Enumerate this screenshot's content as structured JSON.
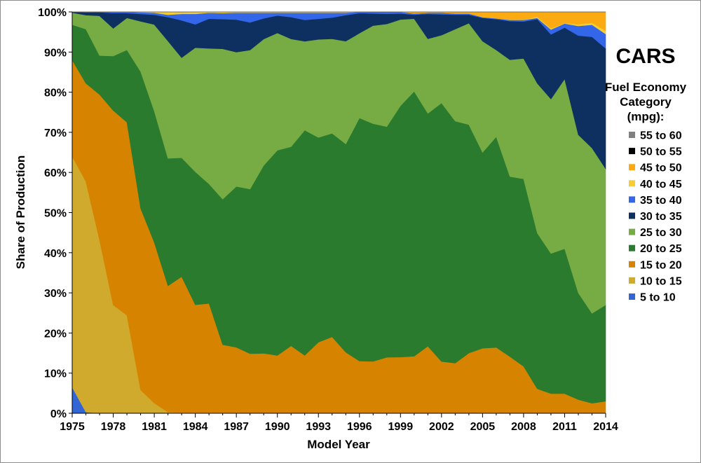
{
  "chart_data": {
    "type": "area",
    "stacked": true,
    "normalized_percent": true,
    "title": "CARS",
    "xlabel": "Model Year",
    "ylabel": "Share of Production",
    "x": [
      1975,
      1976,
      1977,
      1978,
      1979,
      1980,
      1981,
      1982,
      1983,
      1984,
      1985,
      1986,
      1987,
      1988,
      1989,
      1990,
      1991,
      1992,
      1993,
      1994,
      1995,
      1996,
      1997,
      1998,
      1999,
      2000,
      2001,
      2002,
      2003,
      2004,
      2005,
      2006,
      2007,
      2008,
      2009,
      2010,
      2011,
      2012,
      2013,
      2014
    ],
    "x_tick_labels": [
      "1975",
      "1978",
      "1981",
      "1984",
      "1987",
      "1990",
      "1993",
      "1996",
      "1999",
      "2002",
      "2005",
      "2008",
      "2011",
      "2014"
    ],
    "y_tick_labels": [
      "0%",
      "10%",
      "20%",
      "30%",
      "40%",
      "50%",
      "60%",
      "70%",
      "80%",
      "90%",
      "100%"
    ],
    "ylim": [
      0,
      100
    ],
    "xlim": [
      1975,
      2014
    ],
    "grid": false,
    "legend": {
      "title_lines": [
        "Fuel Economy",
        "Category",
        "(mpg):"
      ],
      "placement": "right",
      "order": [
        "55 to 60",
        "50 to 55",
        "45 to 50",
        "40 to 45",
        "35 to 40",
        "30 to 35",
        "25 to 30",
        "20 to 25",
        "15 to 20",
        "10 to 15",
        "5 to 10"
      ]
    },
    "series": [
      {
        "name": "5 to 10",
        "color": "#3465d4",
        "values": [
          6.5,
          0.3,
          0,
          0,
          0,
          0,
          0,
          0,
          0,
          0,
          0,
          0,
          0,
          0,
          0,
          0,
          0,
          0,
          0,
          0,
          0,
          0,
          0,
          0,
          0,
          0,
          0,
          0,
          0,
          0,
          0,
          0,
          0,
          0,
          0,
          0,
          0,
          0,
          0,
          0
        ]
      },
      {
        "name": "10 to 15",
        "color": "#cfaa2d",
        "values": [
          57.5,
          57.5,
          44,
          27,
          24.5,
          5.7,
          2.5,
          0.3,
          0.2,
          0.2,
          0.2,
          0.2,
          0.2,
          0.1,
          0.1,
          0.1,
          0.1,
          0.1,
          0.1,
          0.1,
          0.1,
          0.1,
          0.1,
          0.1,
          0.1,
          0.1,
          0.1,
          0.1,
          0.1,
          0.1,
          0.2,
          0.2,
          0.1,
          0.1,
          0.1,
          0.1,
          0.1,
          0.1,
          0.1,
          0.1
        ]
      },
      {
        "name": "15 to 20",
        "color": "#d68400",
        "values": [
          24,
          24.5,
          37,
          48.5,
          48.3,
          44.5,
          39.5,
          31.2,
          33.8,
          26.8,
          27.2,
          16.9,
          16.2,
          14.6,
          14.7,
          14.2,
          16.6,
          14.3,
          17.5,
          18.9,
          15.1,
          12.9,
          12.8,
          13.8,
          13.9,
          14.1,
          16.6,
          12.8,
          12.4,
          14.9,
          16,
          16.2,
          14,
          11.6,
          6,
          4.8,
          4.8,
          3.3,
          2.4,
          2.9
        ]
      },
      {
        "name": "20 to 25",
        "color": "#2b7b2e",
        "values": [
          8.8,
          13.5,
          9.9,
          13.6,
          18.1,
          33.5,
          32.3,
          31.5,
          29.6,
          33.1,
          29.8,
          36.3,
          40,
          40.6,
          46.4,
          50.7,
          49.3,
          56,
          50.7,
          50.6,
          51.9,
          60.5,
          59.1,
          57.3,
          62.7,
          66,
          58,
          64.4,
          60.3,
          56.9,
          48.8,
          52.5,
          44.8,
          46.7,
          38.8,
          34.9,
          36.1,
          26.6,
          22.4,
          24
        ]
      },
      {
        "name": "25 to 30",
        "color": "#77ab44",
        "values": [
          3,
          3.5,
          10.1,
          6.9,
          8,
          12.3,
          21.3,
          29,
          24.9,
          30.9,
          33.8,
          37.5,
          33.4,
          34.3,
          31.2,
          29,
          26.7,
          22.1,
          24.3,
          23.5,
          25.6,
          21.1,
          24.4,
          25.5,
          21.5,
          18.1,
          18.6,
          16.9,
          22.9,
          25.3,
          27.7,
          21.6,
          29.1,
          30,
          37.3,
          38.5,
          42.3,
          39.4,
          41.2,
          33.9
        ]
      },
      {
        "name": "30 to 35",
        "color": "#0e3060",
        "values": [
          0.2,
          0.7,
          0.9,
          3.8,
          1.2,
          1.8,
          2.4,
          5.9,
          9.3,
          5.8,
          7.4,
          7.4,
          8.1,
          6.8,
          5.1,
          4.3,
          5.4,
          5.3,
          5.1,
          5.3,
          6.5,
          5,
          3,
          2.5,
          1.5,
          1,
          6.2,
          5.2,
          3.6,
          2.1,
          5.8,
          7.7,
          9.6,
          9.2,
          16,
          16.1,
          12.8,
          24.7,
          27.7,
          30
        ]
      },
      {
        "name": "35 to 40",
        "color": "#3366e8",
        "values": [
          0,
          0.1,
          0.1,
          0.3,
          0.3,
          0.4,
          0.5,
          0.6,
          1.6,
          2.6,
          1.5,
          1.5,
          1.7,
          2.4,
          1.4,
          0.7,
          1.1,
          1.8,
          1.5,
          1.2,
          0.6,
          0.3,
          0.4,
          0.5,
          0.4,
          0.3,
          0.3,
          0.4,
          0.3,
          0.3,
          0.2,
          0.2,
          0.3,
          0.4,
          0.3,
          1.2,
          1,
          2.4,
          3,
          3.6
        ]
      },
      {
        "name": "40 to 45",
        "color": "#f6cd33",
        "values": [
          0,
          0,
          0,
          0,
          0,
          0.1,
          0.2,
          0.7,
          0.4,
          0.5,
          0.2,
          0.2,
          0.1,
          0.1,
          0.1,
          0.1,
          0.1,
          0.1,
          0.1,
          0.1,
          0.1,
          0,
          0,
          0,
          0,
          0,
          0,
          0,
          0,
          0,
          0.1,
          0,
          0.1,
          0.1,
          0.3,
          0.3,
          0.1,
          0.4,
          0.5,
          0.8
        ]
      },
      {
        "name": "45 to 50",
        "color": "#fbab11",
        "values": [
          0,
          0,
          0,
          0,
          0,
          0,
          0,
          0,
          0.1,
          0,
          0,
          0.1,
          0.1,
          0.1,
          0.1,
          0.1,
          0.1,
          0.1,
          0.1,
          0.1,
          0.1,
          0,
          0,
          0,
          0,
          0.4,
          0.2,
          0.2,
          0.4,
          0.4,
          1.2,
          1.6,
          1.9,
          1.9,
          1.2,
          4.1,
          2.8,
          3.1,
          2.7,
          4.7
        ]
      },
      {
        "name": "50 to 55",
        "color": "#000000",
        "values": [
          0,
          0,
          0,
          0,
          0,
          0,
          0,
          0,
          0,
          0,
          0,
          0,
          0,
          0,
          0,
          0,
          0,
          0,
          0,
          0,
          0,
          0,
          0,
          0,
          0,
          0,
          0,
          0,
          0,
          0,
          0,
          0,
          0,
          0,
          0,
          0,
          0,
          0,
          0,
          0
        ]
      },
      {
        "name": "55 to 60",
        "color": "#808080",
        "values": [
          0,
          0,
          0,
          0,
          0,
          0,
          0,
          0,
          0,
          0,
          0,
          0,
          0,
          0,
          0,
          0,
          0,
          0,
          0,
          0,
          0,
          0,
          0,
          0,
          0,
          0,
          0,
          0,
          0,
          0,
          0,
          0,
          0,
          0,
          0,
          0,
          0,
          0,
          0,
          0
        ]
      }
    ]
  }
}
